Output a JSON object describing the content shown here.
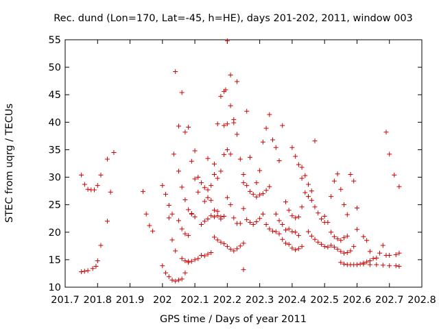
{
  "chart_data": {
    "type": "scatter",
    "title": "Rec. dund (Lon=170, Lat=-45, h=HE), days 201-202, 2011, window 003",
    "xlabel": "GPS time / Days of year 2011",
    "ylabel": "STEC from uqrg / TECUs",
    "xlim": [
      201.7,
      202.8
    ],
    "ylim": [
      10,
      55
    ],
    "xticks": [
      "201.7",
      "201.8",
      "201.9",
      "202",
      "202.1",
      "202.2",
      "202.3",
      "202.4",
      "202.5",
      "202.6",
      "202.7",
      "202.8"
    ],
    "yticks": [
      "10",
      "15",
      "20",
      "25",
      "30",
      "35",
      "40",
      "45",
      "50",
      "55"
    ],
    "grid": false,
    "legend": "none",
    "marker": "plus",
    "color": "#cc0000",
    "points": [
      [
        201.75,
        30.4
      ],
      [
        201.76,
        28.7
      ],
      [
        201.77,
        27.8
      ],
      [
        201.78,
        27.7
      ],
      [
        201.79,
        27.7
      ],
      [
        201.8,
        28.5
      ],
      [
        201.81,
        30.4
      ],
      [
        201.83,
        33.3
      ],
      [
        201.84,
        27.3
      ],
      [
        201.85,
        34.5
      ],
      [
        201.75,
        12.8
      ],
      [
        201.76,
        12.9
      ],
      [
        201.77,
        13.0
      ],
      [
        201.785,
        13.4
      ],
      [
        201.795,
        13.8
      ],
      [
        201.8,
        14.8
      ],
      [
        201.81,
        17.6
      ],
      [
        201.83,
        22.0
      ],
      [
        201.94,
        27.4
      ],
      [
        201.95,
        23.3
      ],
      [
        201.96,
        21.2
      ],
      [
        201.97,
        20.2
      ],
      [
        202.0,
        28.5
      ],
      [
        202.01,
        26.9
      ],
      [
        202.02,
        24.9
      ],
      [
        202.03,
        23.3
      ],
      [
        202.035,
        34.2
      ],
      [
        202.04,
        49.2
      ],
      [
        202.05,
        39.3
      ],
      [
        202.06,
        45.4
      ],
      [
        202.07,
        38.2
      ],
      [
        202.08,
        39.1
      ],
      [
        202.09,
        32.9
      ],
      [
        202.1,
        34.8
      ],
      [
        202.11,
        30.0
      ],
      [
        202.0,
        13.9
      ],
      [
        202.01,
        12.6
      ],
      [
        202.02,
        11.9
      ],
      [
        202.03,
        11.3
      ],
      [
        202.04,
        11.1
      ],
      [
        202.05,
        11.3
      ],
      [
        202.06,
        11.5
      ],
      [
        202.07,
        12.6
      ],
      [
        202.08,
        14.5
      ],
      [
        202.02,
        22.6
      ],
      [
        202.03,
        18.6
      ],
      [
        202.04,
        16.6
      ],
      [
        202.05,
        22.1
      ],
      [
        202.06,
        20.6
      ],
      [
        202.07,
        19.7
      ],
      [
        202.08,
        19.4
      ],
      [
        202.09,
        23.3
      ],
      [
        202.1,
        22.8
      ],
      [
        202.05,
        31.1
      ],
      [
        202.06,
        28.2
      ],
      [
        202.07,
        25.9
      ],
      [
        202.08,
        24.1
      ],
      [
        202.09,
        23.4
      ],
      [
        202.1,
        29.7
      ],
      [
        202.11,
        27.3
      ],
      [
        202.06,
        15.2
      ],
      [
        202.07,
        14.8
      ],
      [
        202.08,
        14.7
      ],
      [
        202.09,
        14.7
      ],
      [
        202.1,
        15.0
      ],
      [
        202.11,
        15.2
      ],
      [
        202.12,
        15.8
      ],
      [
        202.13,
        15.7
      ],
      [
        202.14,
        16.0
      ],
      [
        202.15,
        16.3
      ],
      [
        202.12,
        21.4
      ],
      [
        202.13,
        22.0
      ],
      [
        202.14,
        22.4
      ],
      [
        202.15,
        23.0
      ],
      [
        202.16,
        22.8
      ],
      [
        202.17,
        23.0
      ],
      [
        202.18,
        22.8
      ],
      [
        202.19,
        22.9
      ],
      [
        202.12,
        29.0
      ],
      [
        202.13,
        28.1
      ],
      [
        202.14,
        27.7
      ],
      [
        202.15,
        28.5
      ],
      [
        202.16,
        30.5
      ],
      [
        202.17,
        29.8
      ],
      [
        202.18,
        31.1
      ],
      [
        202.19,
        34.1
      ],
      [
        202.2,
        35.0
      ],
      [
        202.21,
        34.2
      ],
      [
        202.14,
        33.4
      ],
      [
        202.16,
        32.4
      ],
      [
        202.17,
        39.7
      ],
      [
        202.18,
        44.7
      ],
      [
        202.19,
        45.6
      ],
      [
        202.195,
        45.9
      ],
      [
        202.2,
        54.8
      ],
      [
        202.21,
        48.6
      ],
      [
        202.22,
        40.5
      ],
      [
        202.23,
        47.4
      ],
      [
        202.19,
        39.4
      ],
      [
        202.2,
        39.7
      ],
      [
        202.21,
        43.0
      ],
      [
        202.22,
        39.9
      ],
      [
        202.23,
        37.8
      ],
      [
        202.24,
        33.3
      ],
      [
        202.25,
        30.5
      ],
      [
        202.26,
        42.0
      ],
      [
        202.16,
        19.1
      ],
      [
        202.17,
        18.6
      ],
      [
        202.18,
        18.2
      ],
      [
        202.19,
        17.9
      ],
      [
        202.2,
        17.4
      ],
      [
        202.21,
        16.9
      ],
      [
        202.22,
        16.6
      ],
      [
        202.23,
        17.0
      ],
      [
        202.24,
        17.5
      ],
      [
        202.25,
        18.0
      ],
      [
        202.13,
        25.6
      ],
      [
        202.14,
        26.3
      ],
      [
        202.15,
        25.8
      ],
      [
        202.16,
        24.0
      ],
      [
        202.17,
        23.8
      ],
      [
        202.18,
        22.4
      ],
      [
        202.2,
        26.3
      ],
      [
        202.21,
        25.0
      ],
      [
        202.22,
        22.6
      ],
      [
        202.23,
        21.6
      ],
      [
        202.24,
        21.6
      ],
      [
        202.25,
        24.3
      ],
      [
        202.25,
        13.2
      ],
      [
        202.25,
        29.0
      ],
      [
        202.26,
        28.5
      ],
      [
        202.27,
        27.4
      ],
      [
        202.28,
        26.9
      ],
      [
        202.29,
        26.4
      ],
      [
        202.3,
        26.8
      ],
      [
        202.31,
        27.0
      ],
      [
        202.32,
        27.6
      ],
      [
        202.33,
        28.3
      ],
      [
        202.26,
        22.3
      ],
      [
        202.27,
        21.8
      ],
      [
        202.28,
        21.4
      ],
      [
        202.29,
        21.9
      ],
      [
        202.3,
        22.5
      ],
      [
        202.31,
        23.3
      ],
      [
        202.32,
        21.4
      ],
      [
        202.33,
        20.6
      ],
      [
        202.34,
        20.2
      ],
      [
        202.27,
        33.6
      ],
      [
        202.29,
        29.0
      ],
      [
        202.3,
        31.2
      ],
      [
        202.31,
        36.4
      ],
      [
        202.32,
        38.9
      ],
      [
        202.33,
        41.4
      ],
      [
        202.34,
        36.8
      ],
      [
        202.35,
        35.4
      ],
      [
        202.36,
        33.0
      ],
      [
        202.37,
        39.4
      ],
      [
        202.35,
        23.3
      ],
      [
        202.36,
        22.1
      ],
      [
        202.37,
        21.4
      ],
      [
        202.38,
        20.4
      ],
      [
        202.39,
        20.6
      ],
      [
        202.4,
        20.1
      ],
      [
        202.41,
        20.0
      ],
      [
        202.42,
        19.4
      ],
      [
        202.35,
        20.1
      ],
      [
        202.36,
        19.7
      ],
      [
        202.37,
        18.7
      ],
      [
        202.38,
        18.0
      ],
      [
        202.39,
        17.8
      ],
      [
        202.4,
        17.1
      ],
      [
        202.41,
        16.8
      ],
      [
        202.42,
        17.0
      ],
      [
        202.43,
        17.4
      ],
      [
        202.38,
        25.5
      ],
      [
        202.39,
        24.0
      ],
      [
        202.4,
        23.0
      ],
      [
        202.41,
        22.6
      ],
      [
        202.42,
        22.8
      ],
      [
        202.43,
        24.6
      ],
      [
        202.4,
        35.4
      ],
      [
        202.41,
        33.8
      ],
      [
        202.42,
        32.3
      ],
      [
        202.43,
        31.8
      ],
      [
        202.44,
        30.3
      ],
      [
        202.45,
        28.7
      ],
      [
        202.46,
        27.5
      ],
      [
        202.47,
        36.6
      ],
      [
        202.43,
        29.8
      ],
      [
        202.44,
        27.2
      ],
      [
        202.45,
        26.5
      ],
      [
        202.46,
        25.8
      ],
      [
        202.47,
        24.6
      ],
      [
        202.48,
        23.5
      ],
      [
        202.49,
        22.4
      ],
      [
        202.5,
        21.8
      ],
      [
        202.45,
        20.1
      ],
      [
        202.46,
        19.3
      ],
      [
        202.47,
        18.7
      ],
      [
        202.48,
        18.2
      ],
      [
        202.49,
        17.8
      ],
      [
        202.5,
        17.4
      ],
      [
        202.51,
        17.3
      ],
      [
        202.52,
        17.6
      ],
      [
        202.5,
        22.9
      ],
      [
        202.51,
        21.8
      ],
      [
        202.52,
        20.0
      ],
      [
        202.53,
        19.2
      ],
      [
        202.54,
        18.8
      ],
      [
        202.55,
        18.5
      ],
      [
        202.56,
        19.0
      ],
      [
        202.57,
        19.3
      ],
      [
        202.52,
        26.5
      ],
      [
        202.53,
        29.3
      ],
      [
        202.54,
        30.6
      ],
      [
        202.55,
        27.8
      ],
      [
        202.56,
        25.0
      ],
      [
        202.57,
        23.2
      ],
      [
        202.58,
        30.5
      ],
      [
        202.59,
        29.3
      ],
      [
        202.6,
        24.4
      ],
      [
        202.53,
        17.3
      ],
      [
        202.54,
        16.9
      ],
      [
        202.55,
        16.5
      ],
      [
        202.56,
        16.2
      ],
      [
        202.57,
        16.3
      ],
      [
        202.58,
        16.6
      ],
      [
        202.59,
        17.4
      ],
      [
        202.6,
        20.5
      ],
      [
        202.55,
        14.5
      ],
      [
        202.56,
        14.2
      ],
      [
        202.57,
        14.1
      ],
      [
        202.58,
        14.1
      ],
      [
        202.59,
        14.1
      ],
      [
        202.6,
        14.1
      ],
      [
        202.61,
        14.2
      ],
      [
        202.62,
        14.4
      ],
      [
        202.63,
        14.6
      ],
      [
        202.64,
        14.8
      ],
      [
        202.62,
        19.2
      ],
      [
        202.63,
        18.5
      ],
      [
        202.64,
        16.5
      ],
      [
        202.65,
        15.2
      ],
      [
        202.66,
        15.3
      ],
      [
        202.67,
        16.2
      ],
      [
        202.68,
        17.6
      ],
      [
        202.69,
        15.8
      ],
      [
        202.62,
        14.2
      ],
      [
        202.64,
        14.1
      ],
      [
        202.66,
        14.1
      ],
      [
        202.68,
        14.0
      ],
      [
        202.7,
        13.9
      ],
      [
        202.72,
        13.9
      ],
      [
        202.73,
        13.8
      ],
      [
        202.69,
        38.2
      ],
      [
        202.7,
        34.2
      ],
      [
        202.715,
        30.4
      ],
      [
        202.73,
        28.3
      ],
      [
        202.7,
        15.8
      ],
      [
        202.72,
        15.9
      ],
      [
        202.73,
        16.2
      ]
    ]
  }
}
